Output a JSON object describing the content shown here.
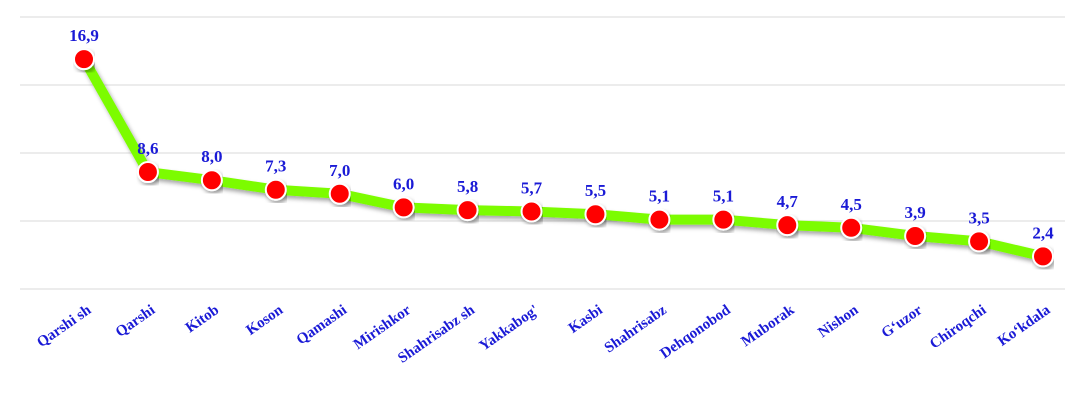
{
  "chart_data": {
    "type": "line",
    "categories": [
      "Qarshi sh",
      "Qarshi",
      "Kitob",
      "Koson",
      "Qamashi",
      "Mirishkor",
      "Shahrisabz sh",
      "Yakkabog'",
      "Kasbi",
      "Shahrisabz",
      "Dehqonobod",
      "Muborak",
      "Nishon",
      "G‘uzor",
      "Chiroqchi",
      "Ko‘kdala"
    ],
    "series": [
      {
        "color": "#7cfc00",
        "marker_color": "#ff0000",
        "values": [
          16.9,
          8.6,
          8.0,
          7.3,
          7.0,
          6.0,
          5.8,
          5.7,
          5.5,
          5.1,
          5.1,
          4.7,
          4.5,
          3.9,
          3.5,
          2.4
        ],
        "value_labels": [
          "16,9",
          "8,6",
          "8,0",
          "7,3",
          "7,0",
          "6,0",
          "5,8",
          "5,7",
          "5,5",
          "5,1",
          "5,1",
          "4,7",
          "4,5",
          "3,9",
          "3,5",
          "2,4"
        ]
      }
    ],
    "ylim": [
      0,
      20
    ],
    "yticks": [
      0,
      5,
      10,
      15,
      20
    ],
    "grid": true
  }
}
